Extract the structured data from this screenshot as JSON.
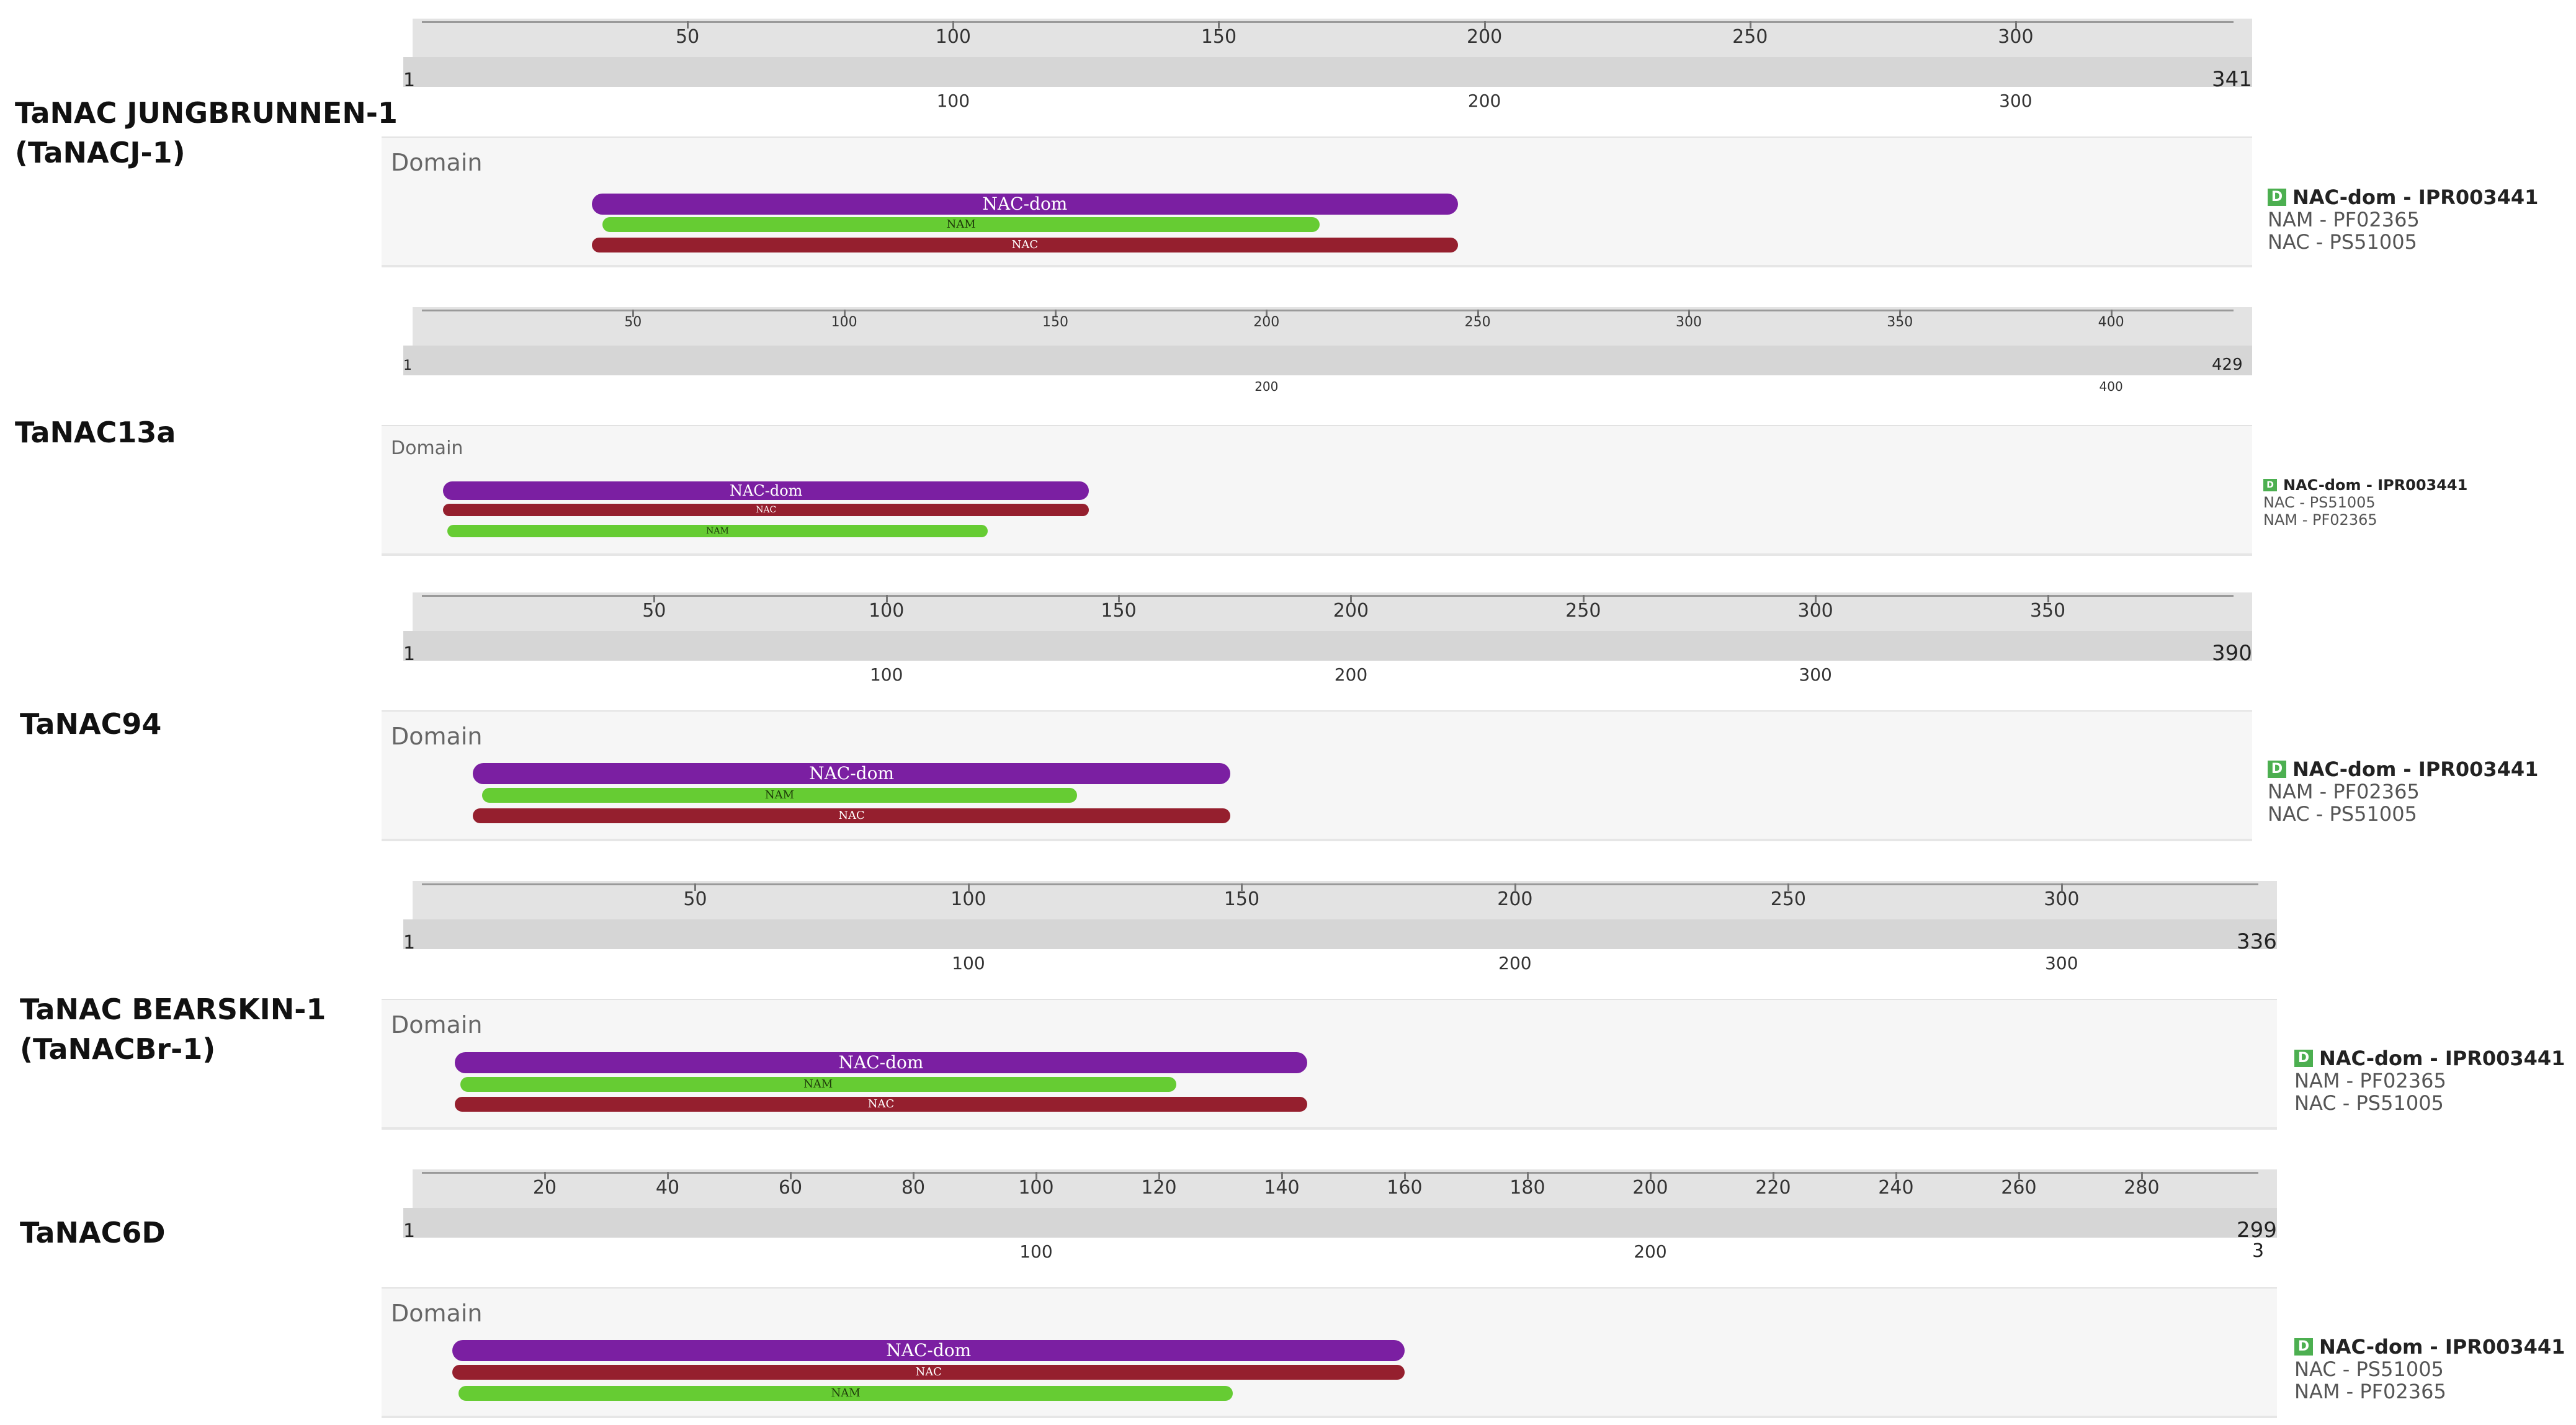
{
  "colors": {
    "nac_dom": "#7b1fa2",
    "nam": "#66cc33",
    "nac": "#951f2e",
    "legend_badge": "#4caf50"
  },
  "domain_heading": "Domain",
  "legend_badge_text": "D",
  "proteins": [
    {
      "name": "TaNAC JUNGBRUNNEN-1\n(TaNACJ-1)",
      "length": 341,
      "start_label": "1",
      "end_label": "341",
      "end_sub_label": "",
      "top_ticks": [
        50,
        100,
        150,
        200,
        250,
        300
      ],
      "bottom_ticks": [
        100,
        200,
        300
      ],
      "domains": [
        {
          "label": "NAC-dom",
          "type": "nac_dom",
          "start": 32,
          "end": 195
        },
        {
          "label": "NAM",
          "type": "nam",
          "start": 34,
          "end": 169
        },
        {
          "label": "NAC",
          "type": "nac",
          "start": 32,
          "end": 195
        }
      ],
      "legend": [
        "NAC-dom - IPR003441",
        "NAM - PF02365",
        "NAC - PS51005"
      ]
    },
    {
      "name": "TaNAC13a",
      "length": 429,
      "start_label": "1",
      "end_label": "429",
      "end_sub_label": "",
      "top_ticks": [
        50,
        100,
        150,
        200,
        250,
        300,
        350,
        400
      ],
      "bottom_ticks": [
        200,
        400
      ],
      "domains": [
        {
          "label": "NAC-dom",
          "type": "nac_dom",
          "start": 5,
          "end": 158
        },
        {
          "label": "NAC",
          "type": "nac",
          "start": 5,
          "end": 158
        },
        {
          "label": "NAM",
          "type": "nam",
          "start": 6,
          "end": 134
        }
      ],
      "legend": [
        "NAC-dom - IPR003441",
        "NAC - PS51005",
        "NAM - PF02365"
      ]
    },
    {
      "name": "TaNAC94",
      "length": 390,
      "start_label": "1",
      "end_label": "390",
      "end_sub_label": "",
      "top_ticks": [
        50,
        100,
        150,
        200,
        250,
        300,
        350
      ],
      "bottom_ticks": [
        100,
        200,
        300
      ],
      "domains": [
        {
          "label": "NAC-dom",
          "type": "nac_dom",
          "start": 11,
          "end": 174
        },
        {
          "label": "NAM",
          "type": "nam",
          "start": 13,
          "end": 141
        },
        {
          "label": "NAC",
          "type": "nac",
          "start": 11,
          "end": 174
        }
      ],
      "legend": [
        "NAC-dom - IPR003441",
        "NAM - PF02365",
        "NAC - PS51005"
      ]
    },
    {
      "name": "TaNAC BEARSKIN-1\n(TaNACBr-1)",
      "length": 336,
      "start_label": "1",
      "end_label": "336",
      "end_sub_label": "",
      "top_ticks": [
        50,
        100,
        150,
        200,
        250,
        300
      ],
      "bottom_ticks": [
        100,
        200,
        300
      ],
      "domains": [
        {
          "label": "NAC-dom",
          "type": "nac_dom",
          "start": 6,
          "end": 162
        },
        {
          "label": "NAM",
          "type": "nam",
          "start": 7,
          "end": 138
        },
        {
          "label": "NAC",
          "type": "nac",
          "start": 6,
          "end": 162
        }
      ],
      "legend": [
        "NAC-dom - IPR003441",
        "NAM - PF02365",
        "NAC - PS51005"
      ]
    },
    {
      "name": "TaNAC6D",
      "length": 299,
      "start_label": "1",
      "end_label": "299",
      "end_sub_label": "3",
      "top_ticks": [
        20,
        40,
        60,
        80,
        100,
        120,
        140,
        160,
        180,
        200,
        220,
        240,
        260,
        280
      ],
      "bottom_ticks": [
        100,
        200
      ],
      "domains": [
        {
          "label": "NAC-dom",
          "type": "nac_dom",
          "start": 5,
          "end": 160
        },
        {
          "label": "NAC",
          "type": "nac",
          "start": 5,
          "end": 160
        },
        {
          "label": "NAM",
          "type": "nam",
          "start": 6,
          "end": 132
        }
      ],
      "legend": [
        "NAC-dom - IPR003441",
        "NAC - PS51005",
        "NAM - PF02365"
      ]
    }
  ]
}
